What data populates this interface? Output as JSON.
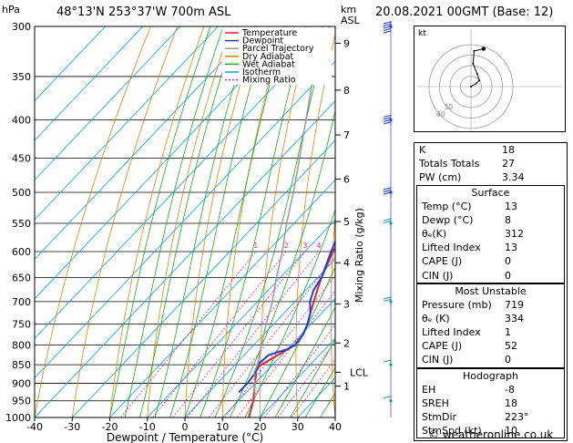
{
  "header": {
    "location": "48°13'N 253°37'W 700m ASL",
    "datetime": "20.08.2021 00GMT (Base: 12)",
    "y_left_unit": "hPa",
    "y_right_unit_top": "km",
    "y_right_unit_bottom": "ASL"
  },
  "chart_data": {
    "type": "line",
    "title": "48°13'N 253°37'W 700m ASL",
    "xlabel": "Dewpoint / Temperature (°C)",
    "ylabel": "hPa",
    "y2label": "Mixing Ratio (g/kg)",
    "x_ticks": [
      -40,
      -30,
      -20,
      -10,
      0,
      10,
      20,
      30,
      40
    ],
    "pressure_levels": [
      300,
      350,
      400,
      450,
      500,
      550,
      600,
      650,
      700,
      750,
      800,
      850,
      900,
      950,
      1000
    ],
    "km_ticks": [
      {
        "km": "1",
        "p": 908
      },
      {
        "km": "2",
        "p": 795
      },
      {
        "km": "3",
        "p": 705
      },
      {
        "km": "4",
        "p": 621
      },
      {
        "km": "5",
        "p": 547
      },
      {
        "km": "6",
        "p": 480
      },
      {
        "km": "7",
        "p": 419
      },
      {
        "km": "8",
        "p": 365
      },
      {
        "km": "9",
        "p": 316
      }
    ],
    "lcl_label": "LCL",
    "lcl_p": 870,
    "mixing_ratio_labels": [
      "1",
      "2",
      "3",
      "4",
      "6",
      "8",
      "10",
      "16",
      "20",
      "25"
    ],
    "legend": [
      "Temperature",
      "Dewpoint",
      "Parcel Trajectory",
      "Dry Adiabat",
      "Wet Adiabat",
      "Isotherm",
      "Mixing Ratio"
    ],
    "colors": {
      "temperature": "#e8242a",
      "dewpoint": "#1f3fd0",
      "parcel": "#999999",
      "dry_adiabat": "#e0850a",
      "wet_adiabat": "#1ca81c",
      "isotherm": "#00a8e8",
      "mixing_ratio": "#e020a0"
    },
    "series": [
      {
        "name": "Temperature",
        "points": [
          [
            1000,
            17
          ],
          [
            950,
            14
          ],
          [
            925,
            12
          ],
          [
            900,
            10
          ],
          [
            875,
            8
          ],
          [
            860,
            6.5
          ],
          [
            850,
            7
          ],
          [
            825,
            9
          ],
          [
            800,
            11
          ],
          [
            775,
            10.5
          ],
          [
            750,
            9
          ],
          [
            725,
            7
          ],
          [
            700,
            5
          ],
          [
            675,
            3
          ],
          [
            650,
            1
          ],
          [
            600,
            -2.5
          ],
          [
            550,
            -5.5
          ],
          [
            500,
            -9
          ],
          [
            475,
            -12
          ],
          [
            450,
            -15
          ],
          [
            425,
            -18
          ],
          [
            400,
            -20.5
          ],
          [
            375,
            -23
          ],
          [
            350,
            -26
          ],
          [
            325,
            -30
          ],
          [
            300,
            -34
          ]
        ]
      },
      {
        "name": "Dewpoint",
        "points": [
          [
            925,
            8
          ],
          [
            910,
            8
          ],
          [
            900,
            8
          ],
          [
            875,
            7.5
          ],
          [
            860,
            7
          ],
          [
            850,
            6
          ],
          [
            825,
            6.5
          ],
          [
            810,
            10
          ],
          [
            800,
            11
          ],
          [
            775,
            10.5
          ],
          [
            750,
            9
          ],
          [
            725,
            7
          ],
          [
            700,
            4
          ],
          [
            675,
            2
          ],
          [
            650,
            1
          ],
          [
            600,
            -3
          ],
          [
            550,
            -7
          ],
          [
            500,
            -11
          ],
          [
            475,
            -14
          ],
          [
            450,
            -17
          ],
          [
            425,
            -20
          ],
          [
            400,
            -24
          ],
          [
            390,
            -24
          ],
          [
            375,
            -26
          ],
          [
            360,
            -28
          ],
          [
            350,
            -32
          ],
          [
            325,
            -35
          ],
          [
            300,
            -39
          ]
        ]
      },
      {
        "name": "Parcel Trajectory",
        "points": [
          [
            925,
            12
          ],
          [
            900,
            10
          ],
          [
            870,
            7
          ],
          [
            850,
            6
          ],
          [
            800,
            2
          ],
          [
            750,
            -2
          ],
          [
            700,
            -6
          ],
          [
            650,
            -11
          ],
          [
            600,
            -16
          ],
          [
            550,
            -22
          ],
          [
            500,
            -28
          ],
          [
            450,
            -35
          ],
          [
            400,
            -43
          ],
          [
            350,
            -52
          ],
          [
            300,
            -62
          ]
        ]
      }
    ]
  },
  "hodograph": {
    "unit_label": "kt",
    "ring_labels": [
      "40",
      "30"
    ],
    "points": [
      [
        0,
        0
      ],
      [
        5,
        3
      ],
      [
        8,
        6
      ],
      [
        6,
        12
      ],
      [
        2,
        22
      ],
      [
        3,
        34
      ],
      [
        12,
        36
      ]
    ]
  },
  "indices": {
    "rows": [
      {
        "k": "K",
        "v": "18"
      },
      {
        "k": "Totals Totals",
        "v": "27"
      },
      {
        "k": "PW (cm)",
        "v": "3.34"
      }
    ]
  },
  "surface": {
    "title": "Surface",
    "rows": [
      {
        "k": "Temp (°C)",
        "v": "13"
      },
      {
        "k": "Dewp (°C)",
        "v": "8"
      },
      {
        "k": "θₑ(K)",
        "v": "312"
      },
      {
        "k": "Lifted Index",
        "v": "13"
      },
      {
        "k": "CAPE (J)",
        "v": "0"
      },
      {
        "k": "CIN (J)",
        "v": "0"
      }
    ]
  },
  "unstable": {
    "title": "Most Unstable",
    "rows": [
      {
        "k": "Pressure (mb)",
        "v": "719"
      },
      {
        "k": "θₑ (K)",
        "v": "334"
      },
      {
        "k": "Lifted Index",
        "v": "1"
      },
      {
        "k": "CAPE (J)",
        "v": "52"
      },
      {
        "k": "CIN (J)",
        "v": "0"
      }
    ]
  },
  "hodo_table": {
    "title": "Hodograph",
    "rows": [
      {
        "k": "EH",
        "v": "-8"
      },
      {
        "k": "SREH",
        "v": "18"
      },
      {
        "k": "StmDir",
        "v": "223°"
      },
      {
        "k": "StmSpd (kt)",
        "v": "10"
      }
    ]
  },
  "credit": "© weatheronline.co.uk",
  "wind_levels": [
    300,
    400,
    500,
    550,
    700,
    850,
    950
  ],
  "wind_speeds_kt": [
    45,
    35,
    25,
    20,
    15,
    10,
    10
  ]
}
